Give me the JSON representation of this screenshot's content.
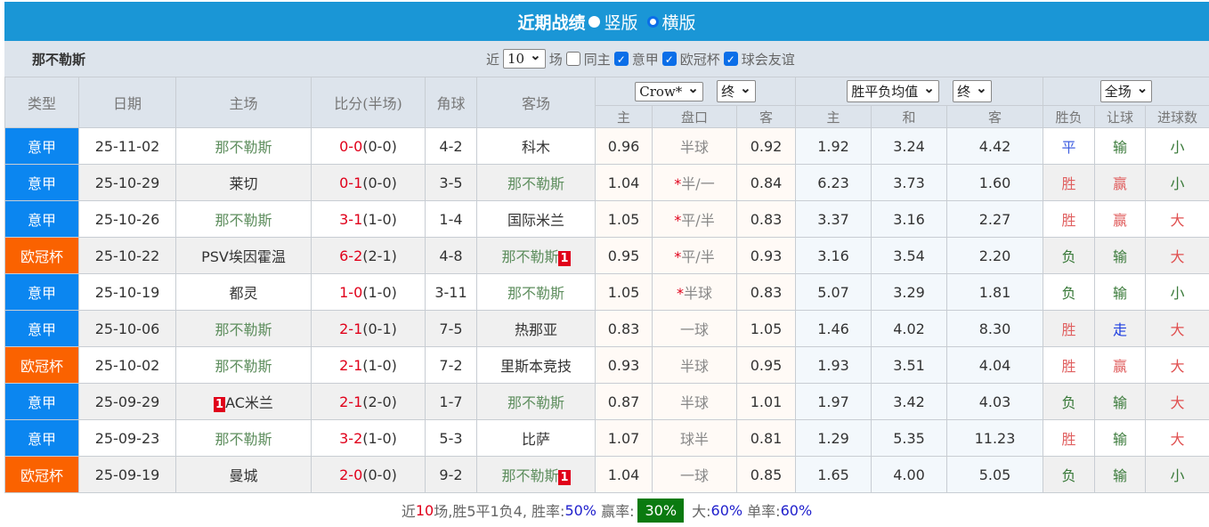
{
  "banner": {
    "title": "近期战绩",
    "opt1": "竖版",
    "opt2": "横版"
  },
  "team": "那不勒斯",
  "filters": {
    "near": "近",
    "count": "10",
    "unit": "场",
    "same_home": "同主",
    "c1": "意甲",
    "c2": "欧冠杯",
    "c3": "球会友谊"
  },
  "headers": {
    "type": "类型",
    "date": "日期",
    "home": "主场",
    "score": "比分(半场)",
    "corner": "角球",
    "away": "客场",
    "sel_company": "Crow*",
    "sel_final1": "终",
    "sel_odds": "胜平负均值",
    "sel_final2": "终",
    "sel_period": "全场",
    "sub": [
      "主",
      "盘口",
      "客",
      "主",
      "和",
      "客",
      "胜负",
      "让球",
      "进球数"
    ]
  },
  "colors": {
    "serie_a": "#0b86f0",
    "ucl": "#fa6200",
    "banner": "#1a96d6"
  },
  "rows": [
    {
      "type": "意甲",
      "date": "25-11-02",
      "home": "那不勒斯",
      "hcard": "",
      "score": "0-0",
      "half": "(0-0)",
      "corner": "4-2",
      "away": "科木",
      "acard": "",
      "ah": "0.96",
      "line": "半球",
      "star": "",
      "aa": "0.92",
      "eh": "1.92",
      "ed": "3.24",
      "ea": "4.42",
      "res": "平",
      "rs": "输",
      "ou": "小"
    },
    {
      "type": "意甲",
      "date": "25-10-29",
      "home": "莱切",
      "hcard": "",
      "score": "0-1",
      "half": "(0-0)",
      "corner": "3-5",
      "away": "那不勒斯",
      "acard": "",
      "ah": "1.04",
      "line": "半/一",
      "star": "*",
      "aa": "0.84",
      "eh": "6.23",
      "ed": "3.73",
      "ea": "1.60",
      "res": "胜",
      "rs": "赢",
      "ou": "小"
    },
    {
      "type": "意甲",
      "date": "25-10-26",
      "home": "那不勒斯",
      "hcard": "",
      "score": "3-1",
      "half": "(1-0)",
      "corner": "1-4",
      "away": "国际米兰",
      "acard": "",
      "ah": "1.05",
      "line": "平/半",
      "star": "*",
      "aa": "0.83",
      "eh": "3.37",
      "ed": "3.16",
      "ea": "2.27",
      "res": "胜",
      "rs": "赢",
      "ou": "大"
    },
    {
      "type": "欧冠杯",
      "date": "25-10-22",
      "home": "PSV埃因霍温",
      "hcard": "",
      "score": "6-2",
      "half": "(2-1)",
      "corner": "4-8",
      "away": "那不勒斯",
      "acard": "1",
      "ah": "0.95",
      "line": "平/半",
      "star": "*",
      "aa": "0.93",
      "eh": "3.16",
      "ed": "3.54",
      "ea": "2.20",
      "res": "负",
      "rs": "输",
      "ou": "大"
    },
    {
      "type": "意甲",
      "date": "25-10-19",
      "home": "都灵",
      "hcard": "",
      "score": "1-0",
      "half": "(1-0)",
      "corner": "3-11",
      "away": "那不勒斯",
      "acard": "",
      "ah": "1.05",
      "line": "半球",
      "star": "*",
      "aa": "0.83",
      "eh": "5.07",
      "ed": "3.29",
      "ea": "1.81",
      "res": "负",
      "rs": "输",
      "ou": "小"
    },
    {
      "type": "意甲",
      "date": "25-10-06",
      "home": "那不勒斯",
      "hcard": "",
      "score": "2-1",
      "half": "(0-1)",
      "corner": "7-5",
      "away": "热那亚",
      "acard": "",
      "ah": "0.83",
      "line": "一球",
      "star": "",
      "aa": "1.05",
      "eh": "1.46",
      "ed": "4.02",
      "ea": "8.30",
      "res": "胜",
      "rs": "走",
      "ou": "大"
    },
    {
      "type": "欧冠杯",
      "date": "25-10-02",
      "home": "那不勒斯",
      "hcard": "",
      "score": "2-1",
      "half": "(1-0)",
      "corner": "7-2",
      "away": "里斯本竞技",
      "acard": "",
      "ah": "0.93",
      "line": "半球",
      "star": "",
      "aa": "0.95",
      "eh": "1.93",
      "ed": "3.51",
      "ea": "4.04",
      "res": "胜",
      "rs": "赢",
      "ou": "大"
    },
    {
      "type": "意甲",
      "date": "25-09-29",
      "home": "AC米兰",
      "hcard": "1",
      "score": "2-1",
      "half": "(2-0)",
      "corner": "1-7",
      "away": "那不勒斯",
      "acard": "",
      "ah": "0.87",
      "line": "半球",
      "star": "",
      "aa": "1.01",
      "eh": "1.97",
      "ed": "3.42",
      "ea": "4.03",
      "res": "负",
      "rs": "输",
      "ou": "大"
    },
    {
      "type": "意甲",
      "date": "25-09-23",
      "home": "那不勒斯",
      "hcard": "",
      "score": "3-2",
      "half": "(1-0)",
      "corner": "5-3",
      "away": "比萨",
      "acard": "",
      "ah": "1.07",
      "line": "球半",
      "star": "",
      "aa": "0.81",
      "eh": "1.29",
      "ed": "5.35",
      "ea": "11.23",
      "res": "胜",
      "rs": "输",
      "ou": "大"
    },
    {
      "type": "欧冠杯",
      "date": "25-09-19",
      "home": "曼城",
      "hcard": "",
      "score": "2-0",
      "half": "(0-0)",
      "corner": "9-2",
      "away": "那不勒斯",
      "acard": "1",
      "ah": "1.04",
      "line": "一球",
      "star": "",
      "aa": "0.85",
      "eh": "1.65",
      "ed": "4.00",
      "ea": "5.05",
      "res": "负",
      "rs": "输",
      "ou": "小"
    }
  ],
  "summary": {
    "p1": "近",
    "n": "10",
    "p2": "场,胜5平1负4, 胜率:",
    "win": "50%",
    "p3": " 赢率:",
    "cover": "30%",
    "p4": " 大:",
    "over": "60%",
    "p5": " 单率:",
    "odd": "60%"
  }
}
